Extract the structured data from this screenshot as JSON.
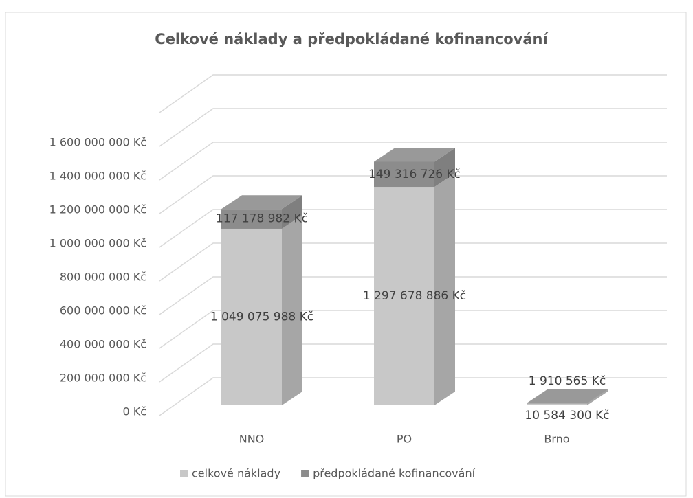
{
  "chart_data": {
    "type": "bar3d_stacked",
    "title": "Celkové náklady a předpokládané kofinancování",
    "categories": [
      "NNO",
      "PO",
      "Brno"
    ],
    "series": [
      {
        "name": "celkové náklady",
        "color": "#c8c8c8",
        "values": [
          1049075988,
          1297678886,
          10584300
        ],
        "value_labels": [
          "1 049 075 988 Kč",
          "1 297 678 886 Kč",
          "10 584 300 Kč"
        ]
      },
      {
        "name": "předpokládané kofinancování",
        "color": "#8c8c8c",
        "values": [
          117178982,
          149316726,
          1910565
        ],
        "value_labels": [
          "117 178 982 Kč",
          "149 316 726 Kč",
          "1 910 565 Kč"
        ]
      }
    ],
    "ylim": [
      0,
      1800000000
    ],
    "yticks": [
      {
        "value": 0,
        "label": "0 Kč"
      },
      {
        "value": 200000000,
        "label": "200 000 000 Kč"
      },
      {
        "value": 400000000,
        "label": "400 000 000 Kč"
      },
      {
        "value": 600000000,
        "label": "600 000 000 Kč"
      },
      {
        "value": 800000000,
        "label": "800 000 000 Kč"
      },
      {
        "value": 1000000000,
        "label": "1 000 000 000 Kč"
      },
      {
        "value": 1200000000,
        "label": "1 200 000 000 Kč"
      },
      {
        "value": 1400000000,
        "label": "1 400 000 000 Kč"
      },
      {
        "value": 1600000000,
        "label": "1 600 000 000 Kč"
      }
    ],
    "grid": true,
    "legend": "bottom"
  }
}
